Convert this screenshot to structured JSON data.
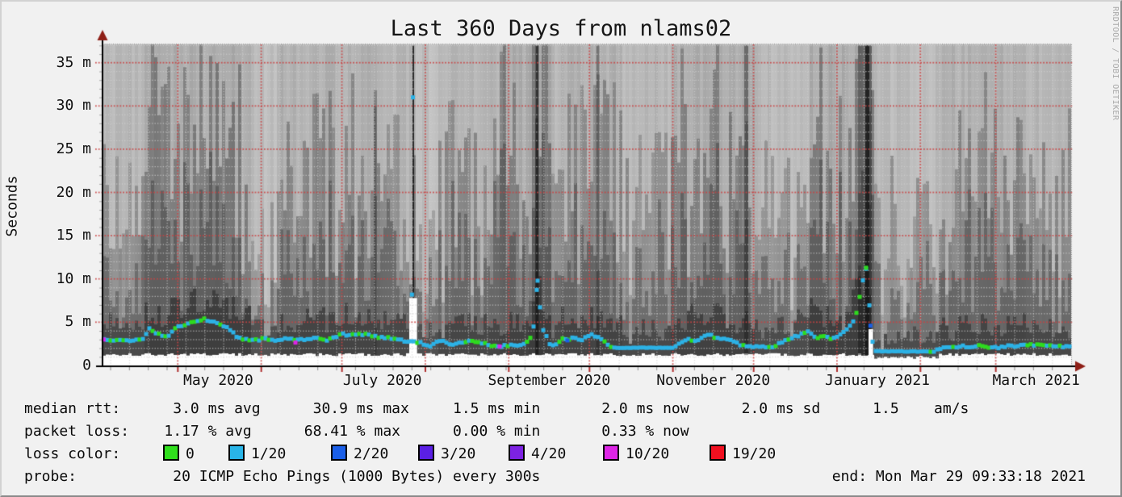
{
  "title": "Last 360 Days from nlams02",
  "watermark": "RRDTOOL / TOBI OETIKER",
  "y_axis": {
    "label": "Seconds"
  },
  "legend": {
    "line1": "median rtt:      3.0 ms avg      30.9 ms max     1.5 ms min       2.0 ms now      2.0 ms sd      1.5    am/s",
    "line2": "packet loss:    1.17 % avg      68.41 % max      0.00 % min       0.33 % now",
    "loss_label": "loss color:",
    "line4": "probe:           20 ICMP Echo Pings (1000 Bytes) every 300s",
    "end_text": "end: Mon Mar 29 09:33:18 2021"
  },
  "chart_data": {
    "type": "smokeping-latency",
    "title": "Last 360 Days from nlams02",
    "ylabel": "Seconds",
    "ylim_ms": [
      0,
      37.1
    ],
    "yticks_ms": [
      0,
      5,
      10,
      15,
      20,
      25,
      30,
      35
    ],
    "ytick_labels": [
      "0",
      "5 m",
      "10 m",
      "15 m",
      "20 m",
      "25 m",
      "30 m",
      "35 m"
    ],
    "x_range_days": 360,
    "x_end_label": "Mon Mar 29 09:33:18 2021",
    "xtick_labels": [
      {
        "label": "May 2020",
        "day": 43.0
      },
      {
        "label": "July 2020",
        "day": 104.0
      },
      {
        "label": "September 2020",
        "day": 166.0
      },
      {
        "label": "November 2020",
        "day": 227.0
      },
      {
        "label": "January 2021",
        "day": 288.0
      },
      {
        "label": "March 2021",
        "day": 347.0
      }
    ],
    "month_gridlines_day": [
      28,
      59,
      89,
      120,
      151,
      181,
      212,
      242,
      273,
      304,
      332
    ],
    "week_gridline_start_day": 3,
    "stats": {
      "median_rtt": {
        "avg_ms": 3.0,
        "max_ms": 30.9,
        "min_ms": 1.5,
        "now_ms": 2.0,
        "sd": 1.5
      },
      "packet_loss": {
        "avg_pct": 1.17,
        "max_pct": 68.41,
        "min_pct": 0.0,
        "now_pct": 0.33
      }
    },
    "probe": "20 ICMP Echo Pings (1000 Bytes) every 300s",
    "loss_legend": [
      {
        "label": "0",
        "color": "#30df1d"
      },
      {
        "label": "1/20",
        "color": "#29b5e8"
      },
      {
        "label": "2/20",
        "color": "#1a5fe8"
      },
      {
        "label": "3/20",
        "color": "#5a1fe4"
      },
      {
        "label": "4/20",
        "color": "#7d22e2"
      },
      {
        "label": "10/20",
        "color": "#dd25e6"
      },
      {
        "label": "19/20",
        "color": "#f01020"
      }
    ],
    "median_series": {
      "color_default": "#2cb2e6",
      "color_green": "#2edb1e",
      "points": [
        [
          0,
          3.0
        ],
        [
          2,
          2.95
        ],
        [
          5,
          3.0
        ],
        [
          10,
          2.9
        ],
        [
          13,
          2.95
        ],
        [
          15.3,
          3.0
        ],
        [
          17.4,
          4.3
        ],
        [
          19,
          4.0
        ],
        [
          20.4,
          3.7
        ],
        [
          23.4,
          3.3
        ],
        [
          25,
          3.6
        ],
        [
          26.4,
          4.1
        ],
        [
          28.5,
          4.5
        ],
        [
          30.3,
          4.7
        ],
        [
          32,
          4.85
        ],
        [
          33.9,
          5.0
        ],
        [
          36,
          5.2
        ],
        [
          37.5,
          5.4
        ],
        [
          39,
          5.25
        ],
        [
          40.5,
          5.1
        ],
        [
          43.5,
          4.7
        ],
        [
          46.5,
          4.4
        ],
        [
          48,
          4.0
        ],
        [
          49.5,
          3.4
        ],
        [
          51.9,
          3.05
        ],
        [
          54,
          2.95
        ],
        [
          56.4,
          2.9
        ],
        [
          58.5,
          3.0
        ],
        [
          60.9,
          3.1
        ],
        [
          63,
          3.0
        ],
        [
          65.4,
          2.95
        ],
        [
          67.5,
          3.05
        ],
        [
          69.9,
          3.1
        ],
        [
          72.3,
          2.9
        ],
        [
          74,
          2.95
        ],
        [
          75.9,
          3.0
        ],
        [
          78,
          3.1
        ],
        [
          80.4,
          3.15
        ],
        [
          83.4,
          2.95
        ],
        [
          86.4,
          3.3
        ],
        [
          89.4,
          3.6
        ],
        [
          91.5,
          3.4
        ],
        [
          93.9,
          3.7
        ],
        [
          96.3,
          3.5
        ],
        [
          98.4,
          3.75
        ],
        [
          100.5,
          3.4
        ],
        [
          102.9,
          3.2
        ],
        [
          105.9,
          3.3
        ],
        [
          108,
          3.15
        ],
        [
          109.5,
          3.0
        ],
        [
          111.5,
          2.9
        ],
        [
          113.4,
          2.85
        ],
        [
          114.9,
          2.9
        ],
        [
          115.35,
          31.0
        ],
        [
          115.8,
          2.7
        ],
        [
          117.9,
          2.75
        ],
        [
          120.9,
          2.15
        ],
        [
          123.3,
          2.5
        ],
        [
          126.3,
          2.95
        ],
        [
          128.4,
          2.6
        ],
        [
          130.5,
          2.3
        ],
        [
          133.5,
          2.7
        ],
        [
          135.9,
          2.9
        ],
        [
          138.9,
          2.75
        ],
        [
          141.3,
          2.6
        ],
        [
          144.3,
          2.25
        ],
        [
          147.3,
          2.2
        ],
        [
          150.3,
          2.3
        ],
        [
          153.9,
          2.35
        ],
        [
          156.9,
          2.6
        ],
        [
          159.3,
          3.2
        ],
        [
          160.5,
          5.0
        ],
        [
          161.1,
          7.8
        ],
        [
          161.7,
          9.8
        ],
        [
          162.3,
          8.0
        ],
        [
          162.9,
          5.5
        ],
        [
          163.8,
          4.0
        ],
        [
          165.3,
          3.1
        ],
        [
          166.8,
          2.2
        ],
        [
          168.9,
          2.6
        ],
        [
          171,
          3.1
        ],
        [
          172.8,
          2.9
        ],
        [
          174.9,
          3.2
        ],
        [
          177.3,
          2.9
        ],
        [
          179.4,
          3.2
        ],
        [
          181.8,
          3.5
        ],
        [
          183.9,
          3.3
        ],
        [
          186,
          2.9
        ],
        [
          187.8,
          2.4
        ],
        [
          189.3,
          2.05
        ],
        [
          212.4,
          2.05
        ],
        [
          213.9,
          2.5
        ],
        [
          216.3,
          2.8
        ],
        [
          218.4,
          3.1
        ],
        [
          220.5,
          2.7
        ],
        [
          222.9,
          3.3
        ],
        [
          225.3,
          3.6
        ],
        [
          227.4,
          3.2
        ],
        [
          229.8,
          3.0
        ],
        [
          231.9,
          3.1
        ],
        [
          234.3,
          2.9
        ],
        [
          236.4,
          2.5
        ],
        [
          239.4,
          2.2
        ],
        [
          242.4,
          2.1
        ],
        [
          245.4,
          2.3
        ],
        [
          248.4,
          2.1
        ],
        [
          250.5,
          2.4
        ],
        [
          252.9,
          2.7
        ],
        [
          255.3,
          3.0
        ],
        [
          257.4,
          3.3
        ],
        [
          259.5,
          3.6
        ],
        [
          261.9,
          3.9
        ],
        [
          263.4,
          3.6
        ],
        [
          265.5,
          3.2
        ],
        [
          267.9,
          3.4
        ],
        [
          270.3,
          3.1
        ],
        [
          272.4,
          3.3
        ],
        [
          274.5,
          3.5
        ],
        [
          276.9,
          4.2
        ],
        [
          278.7,
          5.0
        ],
        [
          279.9,
          5.8
        ],
        [
          281.1,
          7.3
        ],
        [
          282.3,
          9.6
        ],
        [
          283.8,
          11.3
        ],
        [
          284.7,
          8.0
        ],
        [
          285.6,
          4.6
        ],
        [
          286.5,
          1.65
        ],
        [
          308.4,
          1.6
        ],
        [
          310.5,
          1.9
        ],
        [
          313.5,
          2.1
        ],
        [
          315.9,
          2.0
        ],
        [
          318.9,
          2.25
        ],
        [
          321.9,
          2.1
        ],
        [
          325.5,
          2.3
        ],
        [
          328.5,
          2.15
        ],
        [
          331.5,
          2.0
        ],
        [
          334.5,
          2.2
        ],
        [
          337.5,
          2.35
        ],
        [
          340.5,
          2.2
        ],
        [
          343.5,
          2.4
        ],
        [
          346.5,
          2.3
        ],
        [
          349.5,
          2.45
        ],
        [
          352.5,
          2.3
        ],
        [
          355.5,
          2.2
        ],
        [
          357.9,
          2.15
        ],
        [
          360,
          2.1
        ]
      ]
    },
    "peak_dots": [
      [
        115.0,
        8.2,
        "#2cb2e6"
      ],
      [
        115.35,
        31.0,
        "#2cb2e6"
      ],
      [
        161.7,
        9.8,
        "#2cb2e6"
      ],
      [
        283.8,
        11.3,
        "#2edb1e"
      ]
    ],
    "special_dots": [
      [
        0.4,
        3.0,
        "#dd25e6"
      ],
      [
        71.7,
        2.65,
        "#dd25e6"
      ],
      [
        147.6,
        2.2,
        "#dd25e6"
      ],
      [
        172.8,
        2.9,
        "#1a5fe8"
      ],
      [
        285.4,
        4.6,
        "#1a5fe8"
      ]
    ],
    "green_runs": [
      [
        7,
        16
      ],
      [
        26,
        41
      ],
      [
        88,
        103
      ],
      [
        134,
        151
      ],
      [
        164,
        172
      ],
      [
        261,
        273
      ],
      [
        341,
        357
      ]
    ],
    "flat_runs": [
      [
        189,
        212
      ],
      [
        287,
        308
      ]
    ],
    "smoke_bands": [
      [
        0,
        16,
        0.5
      ],
      [
        16,
        55,
        0.85
      ],
      [
        55,
        65,
        0.28
      ],
      [
        65,
        103,
        0.68
      ],
      [
        103,
        114,
        0.55
      ],
      [
        114,
        117,
        0.9
      ],
      [
        117,
        125,
        0.3
      ],
      [
        125,
        148,
        0.6
      ],
      [
        148,
        158,
        0.8
      ],
      [
        158,
        167,
        0.95
      ],
      [
        167,
        171,
        0.5
      ],
      [
        171,
        193,
        0.7
      ],
      [
        193,
        211,
        0.5
      ],
      [
        211,
        242,
        0.8
      ],
      [
        242,
        263,
        0.45
      ],
      [
        263,
        287,
        0.85
      ],
      [
        287,
        311,
        0.4
      ],
      [
        311,
        343,
        0.68
      ],
      [
        343,
        361,
        0.55
      ]
    ],
    "spires": [
      [
        115.2,
        115.8,
        37,
        0.88
      ],
      [
        160.9,
        162.1,
        37,
        0.8
      ],
      [
        280.8,
        285.9,
        37,
        0.5
      ],
      [
        283.5,
        285.0,
        37,
        0.82
      ],
      [
        183.5,
        184.6,
        37,
        0.38
      ],
      [
        238.5,
        240.0,
        37,
        0.42
      ],
      [
        100.8,
        101.8,
        30,
        0.32
      ]
    ],
    "white_notches": [
      [
        114.0,
        116.9,
        7.8,
        0.25
      ],
      [
        284.7,
        286.4,
        4.2,
        1.1
      ]
    ],
    "render_seed": 1337
  }
}
